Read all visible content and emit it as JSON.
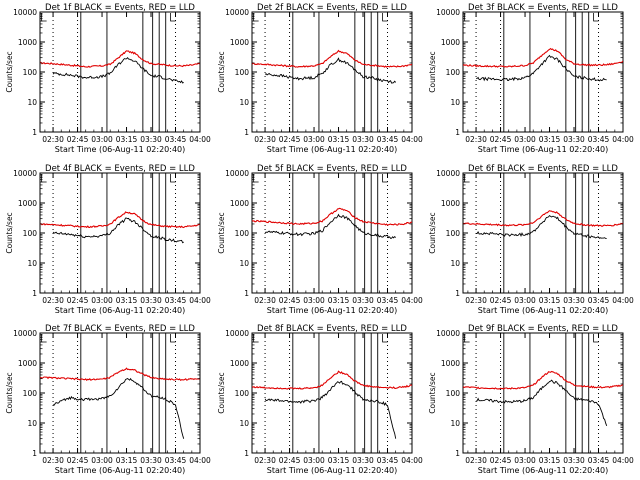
{
  "colors": {
    "events": "#000000",
    "lld": "#e00000",
    "axes": "#000000",
    "background": "#ffffff"
  },
  "chart_data": [
    {
      "type": "line",
      "title": "Det 1f BLACK = Events, RED = LLD",
      "xlabel": "Start Time (06-Aug-11 02:20:40)",
      "ylabel": "Counts/sec",
      "yscale": "log",
      "ylim": [
        1,
        10000
      ],
      "xlim": [
        "02:22",
        "04:00"
      ],
      "x_ticks": [
        "02:30",
        "02:45",
        "03:00",
        "03:15",
        "03:30",
        "03:45",
        "04:00"
      ],
      "y_ticks": [
        "1",
        "10",
        "100",
        "1000",
        "10000"
      ],
      "events_start": "02:30",
      "events_end": "03:50",
      "series": [
        {
          "x": [
            "02:22",
            "02:30",
            "02:40",
            "02:50",
            "03:00",
            "03:05",
            "03:10",
            "03:15",
            "03:20",
            "03:25",
            "03:30",
            "03:35",
            "03:40",
            "03:45",
            "03:50",
            "03:55",
            "04:00"
          ],
          "values": [
            200,
            190,
            170,
            150,
            160,
            180,
            300,
            500,
            420,
            260,
            190,
            180,
            170,
            160,
            160,
            170,
            190
          ]
        },
        {
          "x": [
            "02:30",
            "02:40",
            "02:50",
            "03:00",
            "03:05",
            "03:10",
            "03:15",
            "03:20",
            "03:25",
            "03:30",
            "03:35",
            "03:40",
            "03:45",
            "03:50"
          ],
          "values": [
            90,
            80,
            65,
            70,
            90,
            180,
            300,
            230,
            130,
            75,
            70,
            60,
            50,
            45
          ]
        }
      ]
    },
    {
      "type": "line",
      "title": "Det 2f BLACK = Events, RED = LLD",
      "xlabel": "Start Time (06-Aug-11 02:20:40)",
      "ylabel": "Counts/sec",
      "yscale": "log",
      "ylim": [
        1,
        10000
      ],
      "xlim": [
        "02:22",
        "04:00"
      ],
      "x_ticks": [
        "02:30",
        "02:45",
        "03:00",
        "03:15",
        "03:30",
        "03:45",
        "04:00"
      ],
      "y_ticks": [
        "1",
        "10",
        "100",
        "1000",
        "10000"
      ],
      "events_start": "02:30",
      "events_end": "03:50",
      "series": [
        {
          "x": [
            "02:22",
            "02:30",
            "02:40",
            "02:50",
            "03:00",
            "03:05",
            "03:10",
            "03:15",
            "03:20",
            "03:25",
            "03:30",
            "03:35",
            "03:40",
            "03:45",
            "03:50",
            "03:55",
            "04:00"
          ],
          "values": [
            190,
            180,
            165,
            150,
            160,
            190,
            320,
            500,
            420,
            250,
            180,
            170,
            160,
            150,
            150,
            160,
            180
          ]
        },
        {
          "x": [
            "02:30",
            "02:40",
            "02:50",
            "03:00",
            "03:05",
            "03:10",
            "03:15",
            "03:20",
            "03:25",
            "03:30",
            "03:35",
            "03:40",
            "03:45",
            "03:50"
          ],
          "values": [
            85,
            75,
            60,
            65,
            90,
            170,
            260,
            200,
            120,
            70,
            65,
            55,
            50,
            45
          ]
        }
      ]
    },
    {
      "type": "line",
      "title": "Det 3f BLACK = Events, RED = LLD",
      "xlabel": "Start Time (06-Aug-11 02:20:40)",
      "ylabel": "Counts/sec",
      "yscale": "log",
      "ylim": [
        1,
        10000
      ],
      "xlim": [
        "02:22",
        "04:00"
      ],
      "x_ticks": [
        "02:30",
        "02:45",
        "03:00",
        "03:15",
        "03:30",
        "03:45",
        "04:00"
      ],
      "y_ticks": [
        "1",
        "10",
        "100",
        "1000",
        "10000"
      ],
      "events_start": "02:30",
      "events_end": "03:50",
      "series": [
        {
          "x": [
            "02:22",
            "02:30",
            "02:40",
            "02:50",
            "03:00",
            "03:05",
            "03:10",
            "03:15",
            "03:20",
            "03:25",
            "03:30",
            "03:35",
            "03:40",
            "03:45",
            "03:50",
            "03:55",
            "04:00"
          ],
          "values": [
            170,
            160,
            155,
            150,
            165,
            200,
            350,
            600,
            500,
            260,
            190,
            175,
            170,
            170,
            175,
            190,
            230
          ]
        },
        {
          "x": [
            "02:30",
            "02:40",
            "02:50",
            "03:00",
            "03:05",
            "03:10",
            "03:15",
            "03:20",
            "03:25",
            "03:30",
            "03:35",
            "03:40",
            "03:45",
            "03:50"
          ],
          "values": [
            60,
            58,
            55,
            65,
            90,
            180,
            330,
            260,
            130,
            70,
            65,
            60,
            55,
            55
          ]
        }
      ]
    },
    {
      "type": "line",
      "title": "Det 4f BLACK = Events, RED = LLD",
      "xlabel": "Start Time (06-Aug-11 02:20:40)",
      "ylabel": "Counts/sec",
      "yscale": "log",
      "ylim": [
        1,
        10000
      ],
      "xlim": [
        "02:22",
        "04:00"
      ],
      "x_ticks": [
        "02:30",
        "02:45",
        "03:00",
        "03:15",
        "03:30",
        "03:45",
        "04:00"
      ],
      "y_ticks": [
        "1",
        "10",
        "100",
        "1000",
        "10000"
      ],
      "events_start": "02:30",
      "events_end": "03:50",
      "series": [
        {
          "x": [
            "02:22",
            "02:30",
            "02:40",
            "02:50",
            "03:00",
            "03:05",
            "03:10",
            "03:15",
            "03:20",
            "03:25",
            "03:30",
            "03:35",
            "03:40",
            "03:45",
            "03:50",
            "03:55",
            "04:00"
          ],
          "values": [
            200,
            190,
            175,
            160,
            170,
            200,
            330,
            500,
            430,
            260,
            190,
            175,
            165,
            160,
            160,
            170,
            190
          ]
        },
        {
          "x": [
            "02:30",
            "02:40",
            "02:50",
            "03:00",
            "03:05",
            "03:10",
            "03:15",
            "03:20",
            "03:25",
            "03:30",
            "03:35",
            "03:40",
            "03:45",
            "03:50"
          ],
          "values": [
            100,
            90,
            75,
            80,
            100,
            190,
            300,
            240,
            140,
            80,
            70,
            60,
            55,
            50
          ]
        }
      ]
    },
    {
      "type": "line",
      "title": "Det 5f BLACK = Events, RED = LLD",
      "xlabel": "Start Time (06-Aug-11 02:20:40)",
      "ylabel": "Counts/sec",
      "yscale": "log",
      "ylim": [
        1,
        10000
      ],
      "xlim": [
        "02:22",
        "04:00"
      ],
      "x_ticks": [
        "02:30",
        "02:45",
        "03:00",
        "03:15",
        "03:30",
        "03:45",
        "04:00"
      ],
      "y_ticks": [
        "1",
        "10",
        "100",
        "1000",
        "10000"
      ],
      "events_start": "02:30",
      "events_end": "03:50",
      "series": [
        {
          "x": [
            "02:22",
            "02:30",
            "02:40",
            "02:50",
            "03:00",
            "03:05",
            "03:10",
            "03:15",
            "03:20",
            "03:25",
            "03:30",
            "03:35",
            "03:40",
            "03:45",
            "03:50",
            "03:55",
            "04:00"
          ],
          "values": [
            250,
            240,
            220,
            200,
            210,
            250,
            420,
            650,
            560,
            330,
            240,
            220,
            200,
            190,
            190,
            200,
            230
          ]
        },
        {
          "x": [
            "02:30",
            "02:40",
            "02:50",
            "03:00",
            "03:05",
            "03:10",
            "03:15",
            "03:20",
            "03:25",
            "03:30",
            "03:35",
            "03:40",
            "03:45",
            "03:50"
          ],
          "values": [
            110,
            100,
            90,
            95,
            120,
            230,
            400,
            320,
            180,
            100,
            90,
            80,
            75,
            70
          ]
        }
      ]
    },
    {
      "type": "line",
      "title": "Det 6f BLACK = Events, RED = LLD",
      "xlabel": "Start Time (06-Aug-11 02:20:40)",
      "ylabel": "Counts/sec",
      "yscale": "log",
      "ylim": [
        1,
        10000
      ],
      "xlim": [
        "02:22",
        "04:00"
      ],
      "x_ticks": [
        "02:30",
        "02:45",
        "03:00",
        "03:15",
        "03:30",
        "03:45",
        "04:00"
      ],
      "y_ticks": [
        "1",
        "10",
        "100",
        "1000",
        "10000"
      ],
      "events_start": "02:30",
      "events_end": "03:50",
      "series": [
        {
          "x": [
            "02:22",
            "02:30",
            "02:40",
            "02:50",
            "03:00",
            "03:05",
            "03:10",
            "03:15",
            "03:20",
            "03:25",
            "03:30",
            "03:35",
            "03:40",
            "03:45",
            "03:50",
            "03:55",
            "04:00"
          ],
          "values": [
            210,
            200,
            190,
            180,
            190,
            220,
            360,
            550,
            470,
            280,
            210,
            190,
            180,
            175,
            175,
            185,
            210
          ]
        },
        {
          "x": [
            "02:30",
            "02:40",
            "02:50",
            "03:00",
            "03:05",
            "03:10",
            "03:15",
            "03:20",
            "03:25",
            "03:30",
            "03:35",
            "03:40",
            "03:45",
            "03:50"
          ],
          "values": [
            100,
            95,
            85,
            90,
            110,
            210,
            380,
            300,
            160,
            95,
            85,
            75,
            70,
            65
          ]
        }
      ]
    },
    {
      "type": "line",
      "title": "Det 7f BLACK = Events, RED = LLD",
      "xlabel": "Start Time (06-Aug-11 02:20:40)",
      "ylabel": "Counts/sec",
      "yscale": "log",
      "ylim": [
        1,
        10000
      ],
      "xlim": [
        "02:22",
        "04:00"
      ],
      "x_ticks": [
        "02:30",
        "02:45",
        "03:00",
        "03:15",
        "03:30",
        "03:45",
        "04:00"
      ],
      "y_ticks": [
        "1",
        "10",
        "100",
        "1000",
        "10000"
      ],
      "events_start": "02:30",
      "events_end": "03:50",
      "series": [
        {
          "x": [
            "02:22",
            "02:30",
            "02:40",
            "02:50",
            "03:00",
            "03:05",
            "03:10",
            "03:15",
            "03:20",
            "03:25",
            "03:30",
            "03:35",
            "03:40",
            "03:45",
            "03:50",
            "03:55",
            "04:00"
          ],
          "values": [
            330,
            320,
            300,
            280,
            290,
            330,
            500,
            650,
            580,
            420,
            330,
            300,
            290,
            280,
            280,
            290,
            310
          ]
        },
        {
          "x": [
            "02:30",
            "02:40",
            "02:50",
            "03:00",
            "03:05",
            "03:10",
            "03:15",
            "03:20",
            "03:25",
            "03:30",
            "03:35",
            "03:40",
            "03:45",
            "03:50"
          ],
          "values": [
            40,
            70,
            60,
            65,
            80,
            150,
            300,
            250,
            140,
            80,
            70,
            60,
            40,
            3
          ]
        }
      ]
    },
    {
      "type": "line",
      "title": "Det 8f BLACK = Events, RED = LLD",
      "xlabel": "Start Time (06-Aug-11 02:20:40)",
      "ylabel": "Counts/sec",
      "yscale": "log",
      "ylim": [
        1,
        10000
      ],
      "xlim": [
        "02:22",
        "04:00"
      ],
      "x_ticks": [
        "02:30",
        "02:45",
        "03:00",
        "03:15",
        "03:30",
        "03:45",
        "04:00"
      ],
      "y_ticks": [
        "1",
        "10",
        "100",
        "1000",
        "10000"
      ],
      "events_start": "02:30",
      "events_end": "03:50",
      "series": [
        {
          "x": [
            "02:22",
            "02:30",
            "02:40",
            "02:50",
            "03:00",
            "03:05",
            "03:10",
            "03:15",
            "03:20",
            "03:25",
            "03:30",
            "03:35",
            "03:40",
            "03:45",
            "03:50",
            "03:55",
            "04:00"
          ],
          "values": [
            160,
            150,
            145,
            140,
            150,
            180,
            320,
            500,
            430,
            250,
            180,
            165,
            155,
            150,
            150,
            160,
            180
          ]
        },
        {
          "x": [
            "02:30",
            "02:40",
            "02:50",
            "03:00",
            "03:05",
            "03:10",
            "03:15",
            "03:20",
            "03:25",
            "03:30",
            "03:35",
            "03:40",
            "03:45",
            "03:50"
          ],
          "values": [
            60,
            55,
            50,
            55,
            70,
            130,
            240,
            200,
            110,
            60,
            55,
            50,
            40,
            3
          ]
        }
      ]
    },
    {
      "type": "line",
      "title": "Det 9f BLACK = Events, RED = LLD",
      "xlabel": "Start Time (06-Aug-11 02:20:40)",
      "ylabel": "Counts/sec",
      "yscale": "log",
      "ylim": [
        1,
        10000
      ],
      "xlim": [
        "02:22",
        "04:00"
      ],
      "x_ticks": [
        "02:30",
        "02:45",
        "03:00",
        "03:15",
        "03:30",
        "03:45",
        "04:00"
      ],
      "y_ticks": [
        "1",
        "10",
        "100",
        "1000",
        "10000"
      ],
      "events_start": "02:30",
      "events_end": "03:50",
      "series": [
        {
          "x": [
            "02:22",
            "02:30",
            "02:40",
            "02:50",
            "03:00",
            "03:05",
            "03:10",
            "03:15",
            "03:20",
            "03:25",
            "03:30",
            "03:35",
            "03:40",
            "03:45",
            "03:50",
            "03:55",
            "04:00"
          ],
          "values": [
            160,
            150,
            145,
            140,
            150,
            180,
            330,
            520,
            440,
            260,
            185,
            170,
            160,
            155,
            155,
            165,
            185
          ]
        },
        {
          "x": [
            "02:30",
            "02:40",
            "02:50",
            "03:00",
            "03:05",
            "03:10",
            "03:15",
            "03:20",
            "03:25",
            "03:30",
            "03:35",
            "03:40",
            "03:45",
            "03:50"
          ],
          "values": [
            60,
            55,
            50,
            55,
            70,
            140,
            260,
            210,
            120,
            65,
            60,
            55,
            45,
            8
          ]
        }
      ]
    }
  ]
}
